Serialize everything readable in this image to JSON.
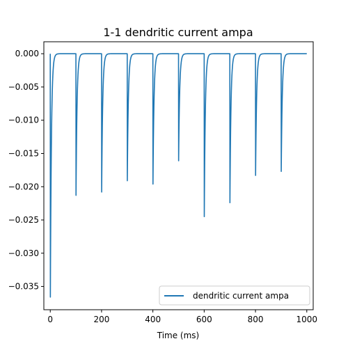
{
  "chart_data": {
    "type": "line",
    "title": "1-1 dendritic current ampa",
    "xlabel": "Time (ms)",
    "ylabel": "",
    "xlim": [
      -25,
      1025
    ],
    "ylim": [
      -0.0385,
      0.0018
    ],
    "xticks": [
      0,
      200,
      400,
      600,
      800,
      1000
    ],
    "yticks": [
      0.0,
      -0.005,
      -0.01,
      -0.015,
      -0.02,
      -0.025,
      -0.03,
      -0.035
    ],
    "ytick_labels": [
      "0.000",
      "−0.005",
      "−0.010",
      "−0.015",
      "−0.020",
      "−0.025",
      "−0.030",
      "−0.035"
    ],
    "grid": false,
    "legend_position": "lower right",
    "series": [
      {
        "name": "dendritic current ampa",
        "color": "#1f77b4",
        "spikes": [
          {
            "t": 0,
            "peak": -0.0366
          },
          {
            "t": 100,
            "peak": -0.0213
          },
          {
            "t": 200,
            "peak": -0.0208
          },
          {
            "t": 300,
            "peak": -0.0191
          },
          {
            "t": 400,
            "peak": -0.0196
          },
          {
            "t": 500,
            "peak": -0.0161
          },
          {
            "t": 600,
            "peak": -0.0245
          },
          {
            "t": 700,
            "peak": -0.0224
          },
          {
            "t": 800,
            "peak": -0.0183
          },
          {
            "t": 900,
            "peak": -0.0177
          }
        ],
        "baseline": 0.0,
        "t_end": 1000
      }
    ]
  }
}
